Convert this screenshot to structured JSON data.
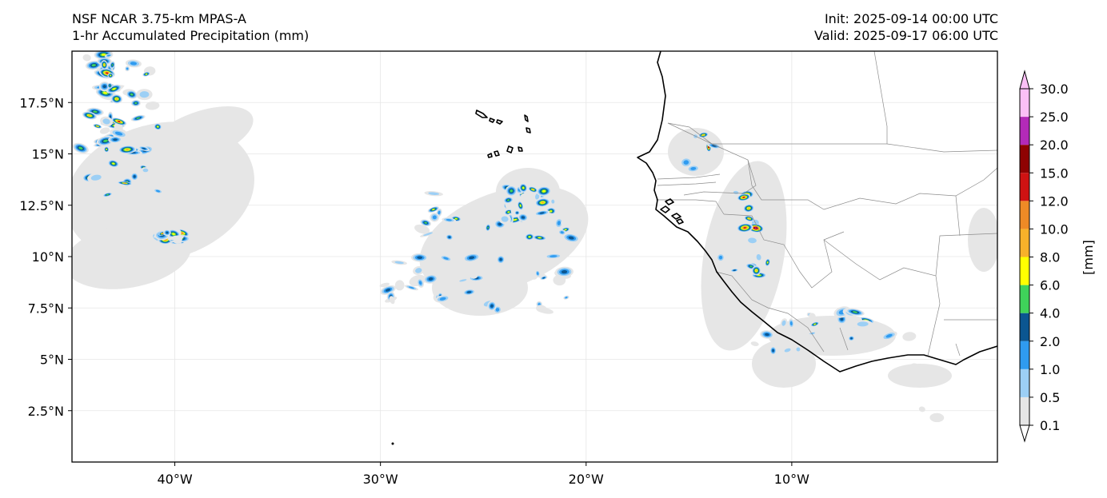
{
  "header": {
    "title_line1": "NSF NCAR 3.75-km MPAS-A",
    "title_line2": "1-hr Accumulated Precipitation (mm)",
    "init": "Init: 2025-09-14 00:00 UTC",
    "valid": "Valid: 2025-09-17 06:00 UTC"
  },
  "map": {
    "lon_range": [
      -45,
      0
    ],
    "lat_range": [
      0,
      20
    ],
    "lon_ticks": [
      {
        "value": -40,
        "label": "40°W"
      },
      {
        "value": -30,
        "label": "30°W"
      },
      {
        "value": -20,
        "label": "20°W"
      },
      {
        "value": -10,
        "label": "10°W"
      }
    ],
    "lat_ticks": [
      {
        "value": 2.5,
        "label": "2.5°N"
      },
      {
        "value": 5,
        "label": "5°N"
      },
      {
        "value": 7.5,
        "label": "7.5°N"
      },
      {
        "value": 10,
        "label": "10°N"
      },
      {
        "value": 12.5,
        "label": "12.5°N"
      },
      {
        "value": 15,
        "label": "15°N"
      },
      {
        "value": 17.5,
        "label": "17.5°N"
      }
    ]
  },
  "colorbar": {
    "unit_label": "[mm]",
    "levels": [
      "0.1",
      "0.5",
      "1.0",
      "2.0",
      "4.0",
      "6.0",
      "8.0",
      "10.0",
      "12.0",
      "15.0",
      "20.0",
      "25.0",
      "30.0"
    ],
    "colors": [
      "#e6e6e6",
      "#9ccff5",
      "#2f9bf0",
      "#0b5691",
      "#3fd35a",
      "#ffff00",
      "#f7b12a",
      "#ee8a26",
      "#cf1212",
      "#8e0202",
      "#b32ab8",
      "#fbc0f6"
    ],
    "under_color": "#ffffff",
    "over_color": "#fbc0f6"
  },
  "style": {
    "coast_color": "#000000",
    "border_color": "#8c8c8c",
    "grid_color": "#e6e6e6"
  }
}
